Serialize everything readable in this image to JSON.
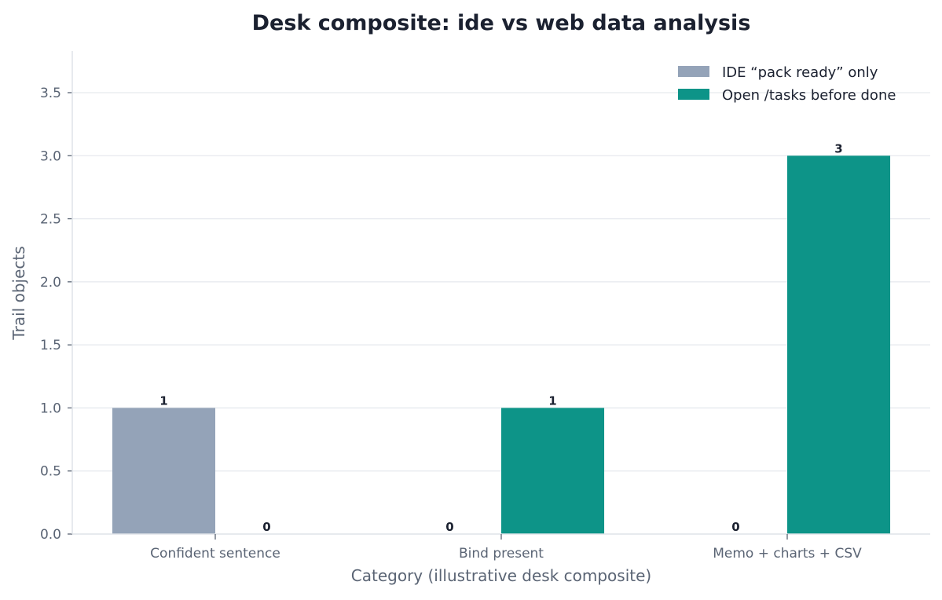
{
  "chart_data": {
    "type": "bar",
    "title": "Desk composite: ide vs web data analysis",
    "xlabel": "Category (illustrative desk composite)",
    "ylabel": "Trail objects",
    "categories": [
      "Confident sentence",
      "Bind present",
      "Memo + charts + CSV"
    ],
    "series": [
      {
        "name": "IDE “pack ready” only",
        "values": [
          1,
          0,
          0
        ],
        "color": "#94a3b8"
      },
      {
        "name": "Open /tasks before done",
        "values": [
          0,
          1,
          3
        ],
        "color": "#0d9488"
      }
    ],
    "ylim": [
      0,
      3.83
    ],
    "yticks": [
      0.0,
      0.5,
      1.0,
      1.5,
      2.0,
      2.5,
      3.0,
      3.5
    ],
    "grid": "horizontal",
    "legend_position": "top-right",
    "data_labels": true
  }
}
